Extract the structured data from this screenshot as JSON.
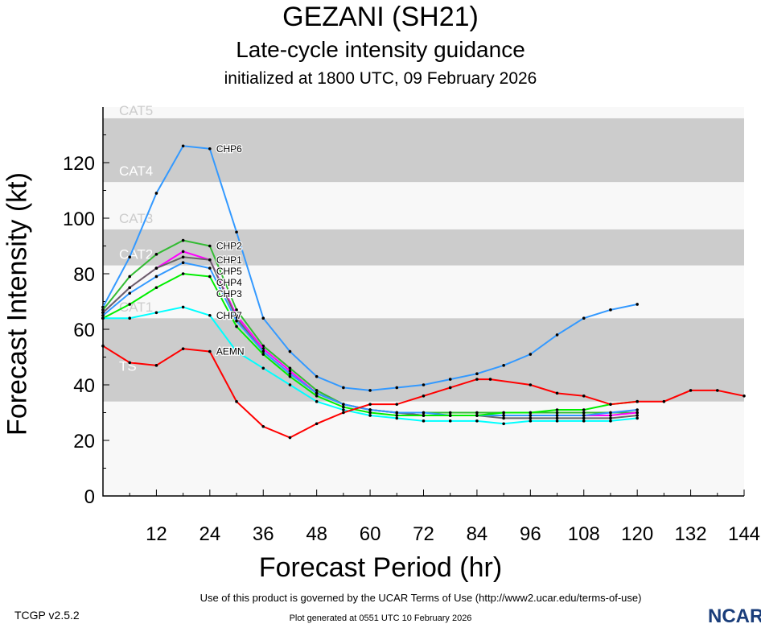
{
  "chart_data": {
    "type": "line",
    "title": "GEZANI (SH21)",
    "subtitle": "Late-cycle intensity guidance",
    "subtitle2": "initialized at 1800 UTC, 09 February 2026",
    "xlabel": "Forecast Period (hr)",
    "ylabel": "Forecast Intensity (kt)",
    "xlim": [
      0,
      144
    ],
    "ylim": [
      0,
      140
    ],
    "xticks": [
      12,
      24,
      36,
      48,
      60,
      72,
      84,
      96,
      108,
      120,
      132,
      144
    ],
    "yticks": [
      0,
      20,
      40,
      60,
      80,
      100,
      120
    ],
    "bands": [
      {
        "label": "TS",
        "from": 34,
        "to": 64,
        "color": "#cccccc"
      },
      {
        "label": "CAT1",
        "from": 64,
        "to": 83,
        "color": "#f8f8f8"
      },
      {
        "label": "CAT2",
        "from": 83,
        "to": 96,
        "color": "#cccccc"
      },
      {
        "label": "CAT3",
        "from": 96,
        "to": 113,
        "color": "#f8f8f8"
      },
      {
        "label": "CAT4",
        "from": 113,
        "to": 136,
        "color": "#cccccc"
      },
      {
        "label": "CAT5",
        "from": 136,
        "to": 140,
        "color": "#f8f8f8"
      }
    ],
    "series": [
      {
        "name": "CHP6",
        "color": "#3399ff",
        "x": [
          0,
          6,
          12,
          18,
          24,
          30,
          36,
          42,
          48,
          54,
          60,
          66,
          72,
          78,
          84,
          90,
          96,
          102,
          108,
          114,
          120
        ],
        "values": [
          68,
          86,
          109,
          126,
          125,
          95,
          64,
          52,
          43,
          39,
          38,
          39,
          40,
          42,
          44,
          47,
          51,
          58,
          64,
          67,
          69
        ]
      },
      {
        "name": "CHP2",
        "color": "#33bb33",
        "x": [
          0,
          6,
          12,
          18,
          24,
          30,
          36,
          42,
          48,
          54,
          60,
          66,
          72,
          78,
          84,
          90,
          96,
          102,
          108,
          114,
          120
        ],
        "values": [
          67,
          79,
          87,
          92,
          90,
          67,
          54,
          46,
          38,
          33,
          31,
          30,
          30,
          30,
          30,
          30,
          30,
          30,
          30,
          30,
          30
        ]
      },
      {
        "name": "CHP1",
        "color": "#ff00ff",
        "x": [
          0,
          6,
          12,
          18,
          24,
          30,
          36,
          42,
          48,
          54,
          60,
          66,
          72,
          78,
          84,
          90,
          96,
          102,
          108,
          114,
          120
        ],
        "values": [
          66,
          75,
          82,
          88,
          85,
          65,
          53,
          45,
          37,
          33,
          31,
          30,
          29,
          29,
          29,
          29,
          29,
          29,
          29,
          29,
          30
        ]
      },
      {
        "name": "CHP5",
        "color": "#666666",
        "x": [
          0,
          6,
          12,
          18,
          24,
          30,
          36,
          42,
          48,
          54,
          60,
          66,
          72,
          78,
          84,
          90,
          96,
          102,
          108,
          114,
          120
        ],
        "values": [
          66,
          75,
          82,
          86,
          85,
          64,
          52,
          44,
          37,
          33,
          31,
          30,
          29,
          29,
          29,
          28,
          28,
          28,
          28,
          28,
          29
        ]
      },
      {
        "name": "CHP4",
        "color": "#3399ff",
        "x": [
          0,
          6,
          12,
          18,
          24,
          30,
          36,
          42,
          48,
          54,
          60,
          66,
          72,
          78,
          84,
          90,
          96,
          102,
          108,
          114,
          120
        ],
        "values": [
          65,
          73,
          79,
          84,
          82,
          63,
          52,
          44,
          37,
          33,
          31,
          30,
          30,
          29,
          29,
          29,
          29,
          29,
          29,
          30,
          31
        ]
      },
      {
        "name": "CHP3",
        "color": "#00ee00",
        "x": [
          0,
          6,
          12,
          18,
          24,
          30,
          36,
          42,
          48,
          54,
          60,
          66,
          72,
          78,
          84,
          90,
          96,
          102,
          108,
          114,
          120
        ],
        "values": [
          64,
          69,
          75,
          80,
          79,
          61,
          51,
          43,
          36,
          32,
          30,
          29,
          29,
          29,
          29,
          30,
          30,
          31,
          31,
          33,
          34
        ]
      },
      {
        "name": "CHP7",
        "color": "#00ffff",
        "x": [
          0,
          6,
          12,
          18,
          24,
          30,
          36,
          42,
          48,
          54,
          60,
          66,
          72,
          78,
          84,
          90,
          96,
          102,
          108,
          114,
          120
        ],
        "values": [
          64,
          64,
          66,
          68,
          65,
          52,
          46,
          40,
          34,
          31,
          29,
          28,
          27,
          27,
          27,
          26,
          27,
          27,
          27,
          27,
          28
        ]
      },
      {
        "name": "AEMN",
        "color": "#ff0000",
        "x": [
          0,
          6,
          12,
          18,
          24,
          30,
          36,
          42,
          48,
          54,
          60,
          66,
          72,
          78,
          84,
          87,
          96,
          102,
          108,
          114,
          120,
          126,
          132,
          138,
          144
        ],
        "values": [
          54,
          48,
          47,
          53,
          52,
          34,
          25,
          21,
          26,
          30,
          33,
          33,
          36,
          39,
          42,
          42,
          40,
          37,
          36,
          33,
          34,
          34,
          38,
          38,
          36
        ]
      }
    ]
  },
  "footer": {
    "version": "TCGP v2.5.2",
    "terms": "Use of this product is governed by the UCAR Terms of Use (http://www2.ucar.edu/terms-of-use)",
    "generated": "Plot generated at 0551 UTC   10 February 2026",
    "logo": "NCAR"
  }
}
